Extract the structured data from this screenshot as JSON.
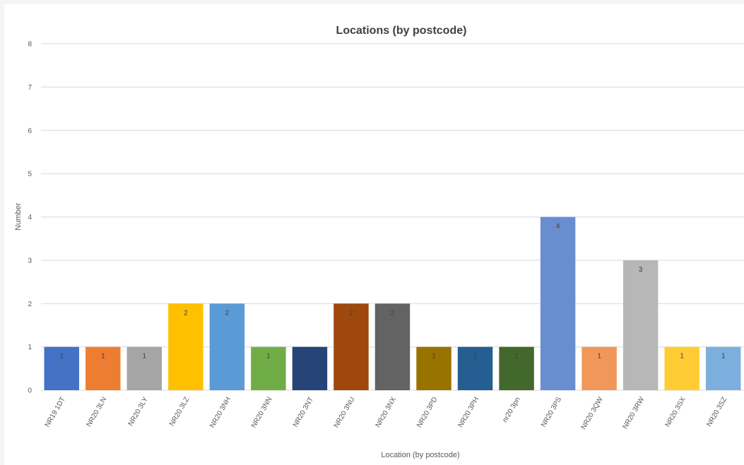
{
  "chart_data": {
    "type": "bar",
    "title": "Locations (by postcode)",
    "xlabel": "Location (by postcode)",
    "ylabel": "Number",
    "ylim": [
      0,
      8
    ],
    "yticks": [
      "0",
      "1",
      "2",
      "3",
      "4",
      "5",
      "6",
      "7",
      "8"
    ],
    "grid": true,
    "legend": "none",
    "categories": [
      "NR19 1DT",
      "NR20 3LN",
      "NR20 3LY",
      "NR20 3LZ",
      "NR20 3NH",
      "NR20 3NN",
      "NR20 3NT",
      "NR20 3NU",
      "NR20 3NX",
      "NR20 3PD",
      "NR20 3PH",
      "nr20 3pn",
      "NR20 3PS",
      "NR20 3QW",
      "NR20 3RW",
      "NR20 3SX",
      "NR20 3SZ"
    ],
    "values": [
      1,
      1,
      1,
      2,
      2,
      1,
      1,
      2,
      2,
      1,
      1,
      1,
      4,
      1,
      3,
      1,
      1
    ],
    "data_labels": [
      "1",
      "1",
      "1",
      "2",
      "2",
      "1",
      "1",
      "2",
      "2",
      "1",
      "1",
      "1",
      "4",
      "1",
      "3",
      "1",
      "1"
    ],
    "colors": [
      "#4472C4",
      "#ED7D31",
      "#A5A5A5",
      "#FFC000",
      "#5B9BD5",
      "#70AD47",
      "#264478",
      "#9E480E",
      "#636363",
      "#997300",
      "#255E91",
      "#43682B",
      "#698ED0",
      "#F1975A",
      "#B7B7B7",
      "#FFCD33",
      "#7CAFDD"
    ],
    "gridline_color": "#d9d9d9"
  }
}
